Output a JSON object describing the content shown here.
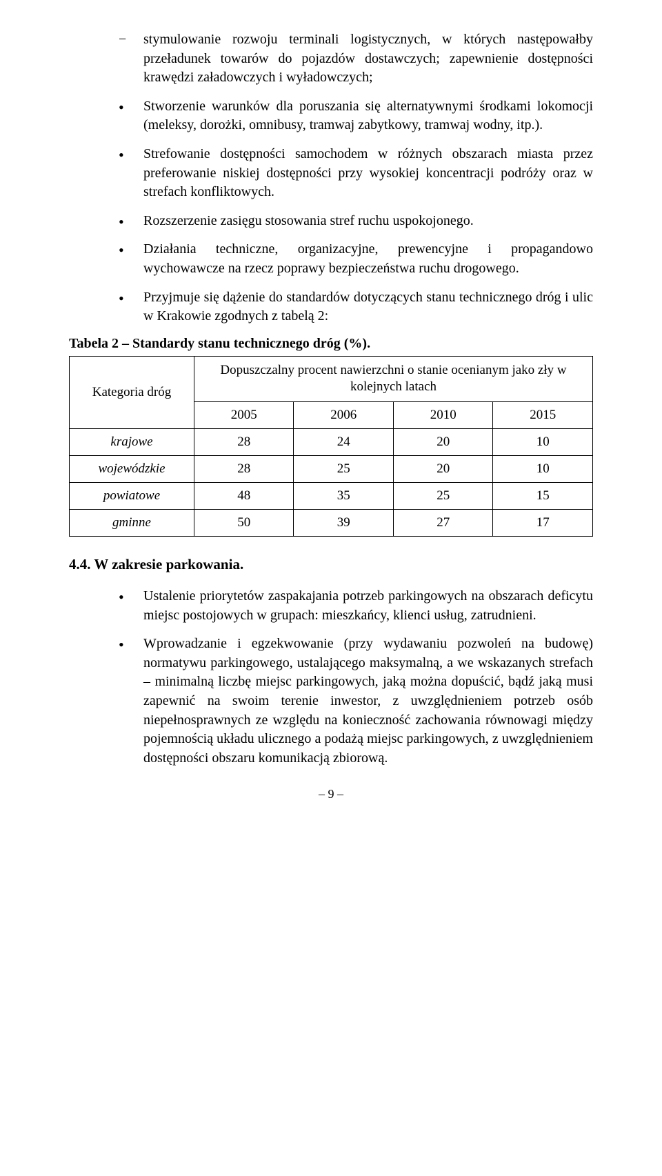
{
  "top_dash": "stymulowanie rozwoju terminali logistycznych, w których następowałby przeładunek towarów do pojazdów dostawczych; zapewnienie dostępności krawędzi załadowczych i wyładowczych;",
  "bullets1": [
    "Stworzenie warunków dla poruszania się alternatywnymi środkami lokomocji (meleksy, dorożki, omnibusy, tramwaj zabytkowy, tramwaj wodny, itp.).",
    "Strefowanie dostępności samochodem w różnych obszarach miasta przez preferowanie niskiej dostępności przy wysokiej koncentracji podróży oraz w strefach konfliktowych.",
    "Rozszerzenie zasięgu stosowania stref ruchu uspokojonego.",
    "Działania techniczne, organizacyjne, prewencyjne i propagandowo wychowawcze na rzecz poprawy bezpieczeństwa ruchu drogowego.",
    "Przyjmuje się dążenie do standardów dotyczących stanu technicznego dróg i ulic w Krakowie zgodnych z tabelą 2:"
  ],
  "table_caption": "Tabela 2 – Standardy stanu technicznego dróg (%).",
  "table": {
    "col0_header": "Kategoria dróg",
    "header_merge": "Dopuszczalny procent nawierzchni o stanie ocenianym jako zły w kolejnych latach",
    "year_cols": [
      "2005",
      "2006",
      "2010",
      "2015"
    ],
    "rows": [
      {
        "label": "krajowe",
        "vals": [
          "28",
          "24",
          "20",
          "10"
        ]
      },
      {
        "label": "wojewódzkie",
        "vals": [
          "28",
          "25",
          "20",
          "10"
        ]
      },
      {
        "label": "powiatowe",
        "vals": [
          "48",
          "35",
          "25",
          "15"
        ]
      },
      {
        "label": "gminne",
        "vals": [
          "50",
          "39",
          "27",
          "17"
        ]
      }
    ]
  },
  "section44": "4.4.  W zakresie parkowania.",
  "bullets44": [
    "Ustalenie priorytetów zaspakajania potrzeb parkingowych na obszarach deficytu miejsc postojowych w grupach: mieszkańcy, klienci usług, zatrudnieni.",
    "Wprowadzanie i egzekwowanie (przy wydawaniu pozwoleń na budowę) normatywu parkingowego, ustalającego maksymalną, a we wskazanych strefach – minimalną liczbę miejsc parkingowych, jaką można dopuścić, bądź jaką musi zapewnić na swoim terenie inwestor, z uwzględnieniem potrzeb osób niepełnosprawnych ze względu na konieczność zachowania równowagi między pojemnością układu ulicznego a podażą miejsc parkingowych, z uwzględnieniem dostępności obszaru komunikacją zbiorową."
  ],
  "page_number": "– 9 –"
}
